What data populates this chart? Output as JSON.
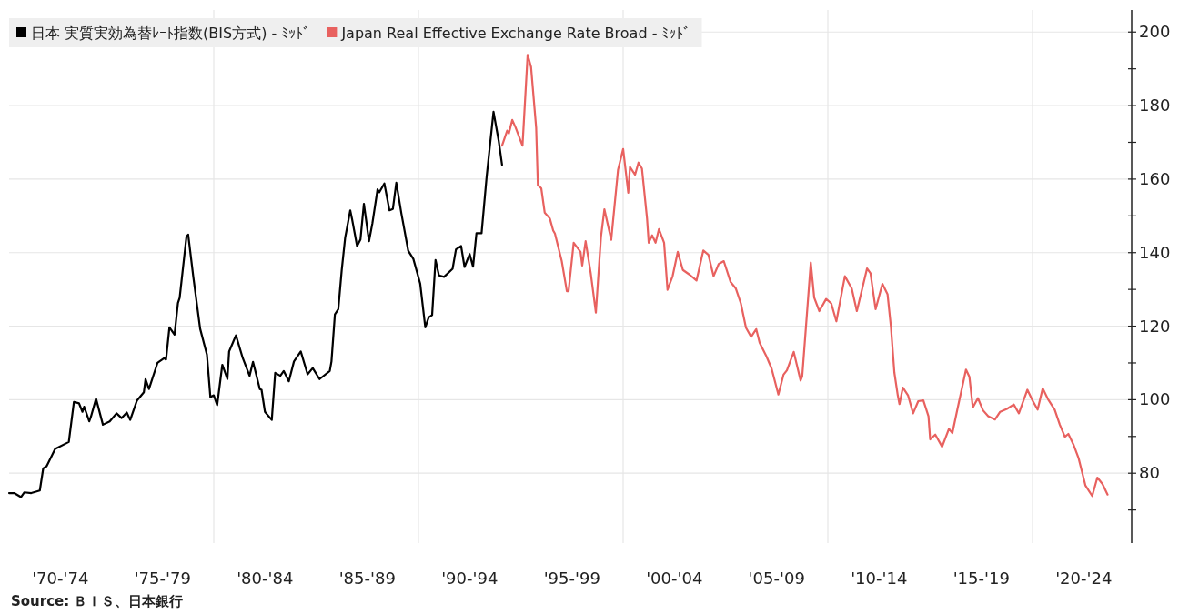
{
  "chart_data": {
    "type": "line",
    "legend": "top left",
    "grid": true,
    "xlim": [
      "1970-01",
      "2024-09"
    ],
    "ylim": [
      61,
      206
    ],
    "xticks": [
      {
        "value": "1972-07",
        "label": "'70-'74"
      },
      {
        "value": "1977-07",
        "label": "'75-'79"
      },
      {
        "value": "1982-07",
        "label": "'80-'84"
      },
      {
        "value": "1987-07",
        "label": "'85-'89"
      },
      {
        "value": "1992-07",
        "label": "'90-'94"
      },
      {
        "value": "1997-07",
        "label": "'95-'99"
      },
      {
        "value": "2002-07",
        "label": "'00-'04"
      },
      {
        "value": "2007-07",
        "label": "'05-'09"
      },
      {
        "value": "2012-07",
        "label": "'10-'14"
      },
      {
        "value": "2017-07",
        "label": "'15-'19"
      },
      {
        "value": "2022-07",
        "label": "'20-'24"
      },
      {
        "value": "1980-01",
        "label": null
      },
      {
        "value": "1990-01",
        "label": null
      },
      {
        "value": "2000-01",
        "label": null
      },
      {
        "value": "2010-01",
        "label": null
      },
      {
        "value": "2020-01",
        "label": null
      }
    ],
    "yticks": [
      {
        "value": 70,
        "label": null
      },
      80,
      {
        "value": 90,
        "label": null
      },
      100,
      {
        "value": 110,
        "label": null
      },
      120,
      {
        "value": 130,
        "label": null
      },
      140,
      {
        "value": 150,
        "label": null
      },
      160,
      {
        "value": 170,
        "label": null
      },
      180,
      {
        "value": 190,
        "label": null
      },
      200
    ],
    "annotations": [
      "Source: ＢＩＳ、日本銀行"
    ],
    "series": [
      {
        "name": "日本 実質実効為替ﾚｰﾄ指数(BIS方式) - ﾐｯﾄﾞ",
        "color": "#000000",
        "x": [
          "1970-01",
          "1970-04",
          "1970-08",
          "1970-10",
          "1971-02",
          "1971-07",
          "1971-09",
          "1971-11",
          "1972-04",
          "1972-12",
          "1973-03",
          "1973-06",
          "1973-08",
          "1973-09",
          "1973-12",
          "1974-01",
          "1974-04",
          "1974-08",
          "1974-12",
          "1975-04",
          "1975-07",
          "1975-10",
          "1975-12",
          "1976-04",
          "1976-08",
          "1976-09",
          "1976-11",
          "1977-04",
          "1977-08",
          "1977-09",
          "1977-11",
          "1978-02",
          "1978-04",
          "1978-05",
          "1978-09",
          "1978-10",
          "1979-01",
          "1979-05",
          "1979-09",
          "1979-11",
          "1980-01",
          "1980-03",
          "1980-06",
          "1980-09",
          "1980-10",
          "1981-02",
          "1981-06",
          "1981-10",
          "1981-12",
          "1982-04",
          "1982-05",
          "1982-07",
          "1982-11",
          "1983-01",
          "1983-04",
          "1983-06",
          "1983-09",
          "1983-12",
          "1984-04",
          "1984-08",
          "1984-11",
          "1985-03",
          "1985-09",
          "1985-10",
          "1985-12",
          "1986-02",
          "1986-04",
          "1986-06",
          "1986-09",
          "1986-10",
          "1987-01",
          "1987-03",
          "1987-05",
          "1987-08",
          "1987-10",
          "1988-01",
          "1988-02",
          "1988-05",
          "1988-08",
          "1988-10",
          "1988-12",
          "1989-03",
          "1989-07",
          "1989-10",
          "1990-02",
          "1990-05",
          "1990-07",
          "1990-09",
          "1990-11",
          "1991-01",
          "1991-04",
          "1991-09",
          "1991-11",
          "1992-02",
          "1992-04",
          "1992-07",
          "1992-09",
          "1992-11",
          "1993-02",
          "1993-05",
          "1993-07",
          "1993-09",
          "1993-12",
          "1994-02"
        ],
        "values": [
          74.6,
          74.6,
          73.5,
          74.8,
          74.6,
          75.3,
          81.3,
          81.9,
          86.6,
          88.5,
          99.4,
          99.0,
          96.7,
          98.1,
          94.1,
          95.4,
          100.3,
          93.2,
          94.1,
          96.3,
          95.0,
          96.5,
          94.5,
          99.8,
          102.0,
          105.6,
          102.9,
          110.0,
          111.3,
          110.9,
          119.7,
          117.7,
          126.3,
          127.7,
          144.4,
          144.9,
          133.4,
          119.3,
          112.2,
          100.7,
          101.2,
          98.5,
          109.5,
          105.6,
          113.1,
          117.5,
          111.3,
          106.5,
          110.3,
          102.9,
          102.7,
          96.7,
          94.5,
          107.3,
          106.5,
          107.8,
          105.0,
          110.4,
          113.1,
          106.9,
          108.6,
          105.6,
          107.8,
          110.4,
          123.2,
          124.6,
          135.2,
          144.0,
          151.5,
          149.3,
          141.8,
          143.6,
          153.3,
          143.1,
          148.0,
          157.2,
          156.4,
          158.8,
          151.5,
          151.9,
          159.0,
          150.6,
          140.5,
          138.3,
          131.6,
          119.7,
          122.4,
          123.0,
          138.0,
          133.8,
          133.4,
          135.6,
          140.9,
          141.8,
          136.1,
          139.6,
          136.2,
          145.3,
          145.3,
          160.8,
          169.6,
          178.3,
          170.5,
          163.9
        ]
      },
      {
        "name": "Japan Real Effective Exchange Rate Broad - ﾐｯﾄﾞ",
        "color": "#e8615f",
        "x": [
          "1994-02",
          "1994-05",
          "1994-06",
          "1994-08",
          "1994-10",
          "1995-01",
          "1995-02",
          "1995-05",
          "1995-07",
          "1995-10",
          "1995-11",
          "1996-01",
          "1996-03",
          "1996-06",
          "1996-08",
          "1996-09",
          "1997-01",
          "1997-04",
          "1997-05",
          "1997-08",
          "1997-12",
          "1998-01",
          "1998-03",
          "1998-06",
          "1998-09",
          "1998-12",
          "1999-02",
          "1999-06",
          "1999-10",
          "2000-01",
          "2000-04",
          "2000-05",
          "2000-08",
          "2000-10",
          "2000-12",
          "2001-03",
          "2001-04",
          "2001-06",
          "2001-08",
          "2001-10",
          "2002-01",
          "2002-03",
          "2002-06",
          "2002-09",
          "2002-12",
          "2003-04",
          "2003-08",
          "2003-12",
          "2004-03",
          "2004-06",
          "2004-09",
          "2004-12",
          "2005-04",
          "2005-07",
          "2005-10",
          "2006-01",
          "2006-04",
          "2006-07",
          "2006-09",
          "2007-01",
          "2007-04",
          "2007-08",
          "2007-11",
          "2008-01",
          "2008-05",
          "2008-09",
          "2008-10",
          "2009-03",
          "2009-05",
          "2009-08",
          "2009-12",
          "2010-03",
          "2010-06",
          "2010-11",
          "2011-03",
          "2011-06",
          "2011-12",
          "2012-02",
          "2012-05",
          "2012-09",
          "2012-12",
          "2013-02",
          "2013-04",
          "2013-06",
          "2013-07",
          "2013-09",
          "2013-12",
          "2014-03",
          "2014-06",
          "2014-09",
          "2014-12",
          "2015-01",
          "2015-04",
          "2015-08",
          "2015-12",
          "2016-02",
          "2016-05",
          "2016-10",
          "2016-12",
          "2017-02",
          "2017-05",
          "2017-08",
          "2017-11",
          "2018-03",
          "2018-06",
          "2018-10",
          "2019-02",
          "2019-05",
          "2019-10",
          "2020-01",
          "2020-04",
          "2020-07",
          "2020-10",
          "2021-02",
          "2021-05",
          "2021-08",
          "2021-10",
          "2022-01",
          "2022-04",
          "2022-08",
          "2022-12",
          "2023-03",
          "2023-06",
          "2023-09"
        ],
        "values": [
          169.1,
          173.2,
          172.4,
          176.1,
          174.0,
          170.3,
          169.1,
          193.8,
          190.5,
          174.0,
          158.4,
          157.5,
          150.9,
          149.3,
          146.0,
          145.2,
          137.7,
          129.5,
          129.5,
          142.7,
          140.2,
          136.5,
          143.1,
          134.4,
          123.7,
          144.3,
          151.8,
          143.5,
          162.5,
          168.2,
          156.3,
          163.3,
          161.2,
          164.5,
          162.9,
          149.3,
          142.7,
          144.7,
          142.7,
          146.4,
          142.7,
          129.9,
          133.6,
          140.2,
          135.3,
          134.0,
          132.4,
          140.6,
          139.4,
          133.6,
          136.9,
          137.7,
          132.0,
          130.3,
          126.2,
          119.6,
          117.1,
          119.2,
          115.5,
          111.8,
          108.5,
          101.4,
          106.8,
          108.0,
          113.0,
          105.2,
          106.4,
          137.3,
          127.8,
          124.1,
          127.4,
          126.2,
          121.3,
          133.6,
          130.3,
          124.1,
          135.7,
          134.4,
          124.6,
          131.5,
          128.7,
          119.8,
          107.4,
          101.2,
          98.8,
          103.3,
          101.2,
          96.3,
          99.6,
          99.8,
          95.5,
          89.2,
          90.5,
          87.2,
          92.1,
          90.9,
          97.5,
          108.2,
          106.2,
          97.9,
          100.4,
          97.1,
          95.5,
          94.6,
          96.7,
          97.5,
          98.7,
          96.3,
          102.7,
          99.8,
          97.3,
          103.1,
          100.2,
          97.3,
          93.2,
          89.9,
          90.7,
          87.8,
          84.1,
          76.7,
          73.8,
          78.8,
          77.1,
          74.2
        ]
      }
    ]
  }
}
